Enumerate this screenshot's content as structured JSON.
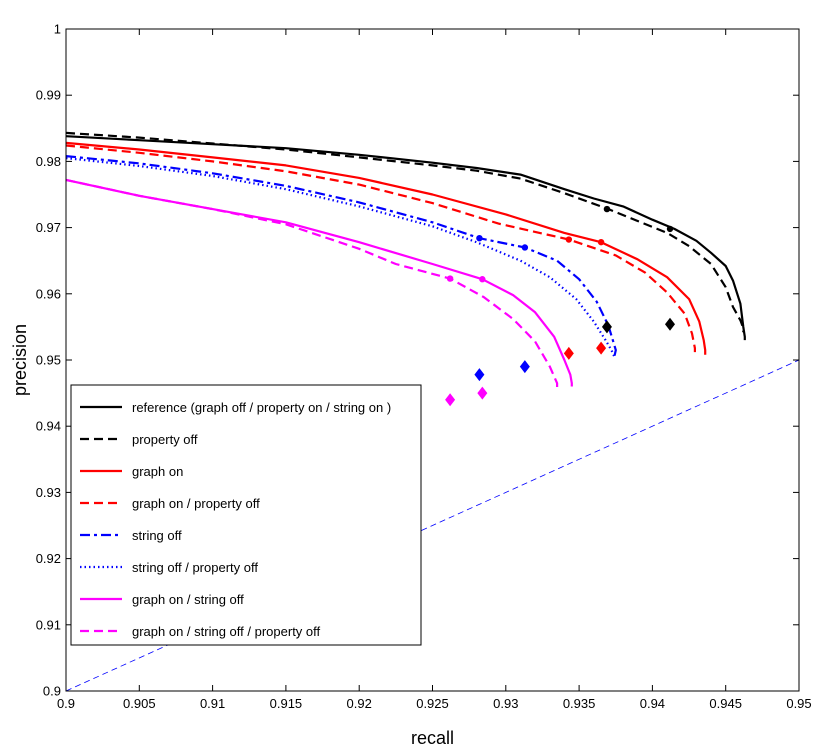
{
  "chart_data": {
    "type": "line",
    "title": "",
    "xlabel": "recall",
    "ylabel": "precision",
    "xlim": [
      0.9,
      0.95
    ],
    "ylim": [
      0.9,
      1.0
    ],
    "xticks": [
      "0.9",
      "0.905",
      "0.91",
      "0.915",
      "0.92",
      "0.925",
      "0.93",
      "0.935",
      "0.94",
      "0.945",
      "0.95"
    ],
    "yticks": [
      "0.9",
      "0.91",
      "0.92",
      "0.93",
      "0.94",
      "0.95",
      "0.96",
      "0.97",
      "0.98",
      "0.99",
      "1"
    ],
    "grid": false,
    "legend_position": "lower-left",
    "series": [
      {
        "name": "reference (graph off / property on / string on )",
        "color": "#000000",
        "dash": "solid",
        "x": [
          0.9,
          0.905,
          0.91,
          0.915,
          0.92,
          0.925,
          0.928,
          0.931,
          0.934,
          0.936,
          0.938,
          0.94,
          0.9415,
          0.943,
          0.944,
          0.945,
          0.9455,
          0.946,
          0.9462,
          0.9463,
          0.9463
        ],
        "y": [
          0.9838,
          0.9832,
          0.9826,
          0.982,
          0.981,
          0.9798,
          0.979,
          0.978,
          0.9758,
          0.9744,
          0.9732,
          0.9712,
          0.9698,
          0.968,
          0.9662,
          0.9642,
          0.962,
          0.9585,
          0.955,
          0.9535,
          0.953
        ]
      },
      {
        "name": "property off",
        "color": "#000000",
        "dash": "dashed",
        "x": [
          0.9,
          0.905,
          0.91,
          0.915,
          0.92,
          0.925,
          0.928,
          0.931,
          0.934,
          0.937,
          0.939,
          0.941,
          0.9425,
          0.944,
          0.945,
          0.9455,
          0.946,
          0.9462,
          0.9462
        ],
        "y": [
          0.9843,
          0.9836,
          0.9827,
          0.9818,
          0.9806,
          0.9794,
          0.9786,
          0.9774,
          0.9752,
          0.9728,
          0.971,
          0.9692,
          0.9672,
          0.9645,
          0.961,
          0.958,
          0.956,
          0.9548,
          0.9542
        ]
      },
      {
        "name": "graph on",
        "color": "#ff0000",
        "dash": "solid",
        "x": [
          0.9,
          0.905,
          0.91,
          0.915,
          0.92,
          0.925,
          0.93,
          0.934,
          0.9365,
          0.939,
          0.941,
          0.9425,
          0.9432,
          0.9435,
          0.9436,
          0.9436
        ],
        "y": [
          0.9828,
          0.9818,
          0.9806,
          0.9794,
          0.9775,
          0.975,
          0.972,
          0.9692,
          0.9678,
          0.9652,
          0.9625,
          0.9592,
          0.9558,
          0.953,
          0.9515,
          0.9508
        ]
      },
      {
        "name": "graph on / property off",
        "color": "#ff0000",
        "dash": "dashed",
        "x": [
          0.9,
          0.905,
          0.91,
          0.915,
          0.92,
          0.925,
          0.9295,
          0.9343,
          0.9375,
          0.9395,
          0.941,
          0.9422,
          0.9427,
          0.9429,
          0.9429
        ],
        "y": [
          0.9824,
          0.9813,
          0.98,
          0.9785,
          0.9765,
          0.9737,
          0.9706,
          0.9682,
          0.9658,
          0.9632,
          0.9602,
          0.957,
          0.954,
          0.9518,
          0.9512
        ]
      },
      {
        "name": "string off",
        "color": "#0000ff",
        "dash": "dashdot",
        "x": [
          0.9,
          0.905,
          0.91,
          0.915,
          0.92,
          0.925,
          0.9282,
          0.9313,
          0.9335,
          0.935,
          0.9362,
          0.937,
          0.9373,
          0.9375,
          0.9374
        ],
        "y": [
          0.9808,
          0.9797,
          0.9782,
          0.9763,
          0.9738,
          0.9708,
          0.9684,
          0.967,
          0.965,
          0.9622,
          0.9588,
          0.9552,
          0.953,
          0.9515,
          0.9505
        ]
      },
      {
        "name": "string off  / property off",
        "color": "#0000ff",
        "dash": "dotted",
        "x": [
          0.9,
          0.905,
          0.91,
          0.915,
          0.92,
          0.925,
          0.928,
          0.931,
          0.933,
          0.9348,
          0.936,
          0.9368,
          0.9372,
          0.9374
        ],
        "y": [
          0.9805,
          0.9793,
          0.9778,
          0.9758,
          0.9732,
          0.9702,
          0.9678,
          0.965,
          0.9625,
          0.9592,
          0.9558,
          0.953,
          0.9515,
          0.9505
        ]
      },
      {
        "name": "graph on / string off",
        "color": "#ff00ff",
        "dash": "solid",
        "x": [
          0.9,
          0.905,
          0.91,
          0.915,
          0.92,
          0.925,
          0.9284,
          0.9305,
          0.932,
          0.9333,
          0.934,
          0.9344,
          0.9345,
          0.9345
        ],
        "y": [
          0.9772,
          0.9748,
          0.9728,
          0.9708,
          0.9678,
          0.9645,
          0.9622,
          0.9598,
          0.9572,
          0.9535,
          0.95,
          0.9478,
          0.9465,
          0.946
        ]
      },
      {
        "name": "graph on / string off / property off",
        "color": "#ff00ff",
        "dash": "dashed",
        "x": [
          0.9,
          0.905,
          0.91,
          0.915,
          0.92,
          0.9225,
          0.9262,
          0.9285,
          0.9305,
          0.932,
          0.933,
          0.9335,
          0.9335
        ],
        "y": [
          0.9772,
          0.9748,
          0.9728,
          0.9705,
          0.9668,
          0.9645,
          0.9623,
          0.9595,
          0.9562,
          0.9528,
          0.949,
          0.9465,
          0.9458
        ]
      }
    ],
    "circle_markers": [
      {
        "color": "#000000",
        "x": 0.9369,
        "y": 0.9728
      },
      {
        "color": "#000000",
        "x": 0.9412,
        "y": 0.9698
      },
      {
        "color": "#ff0000",
        "x": 0.9343,
        "y": 0.9682
      },
      {
        "color": "#ff0000",
        "x": 0.9365,
        "y": 0.9678
      },
      {
        "color": "#0000ff",
        "x": 0.9282,
        "y": 0.9684
      },
      {
        "color": "#0000ff",
        "x": 0.9313,
        "y": 0.967
      },
      {
        "color": "#ff00ff",
        "x": 0.9262,
        "y": 0.9623
      },
      {
        "color": "#ff00ff",
        "x": 0.9284,
        "y": 0.9622
      }
    ],
    "diamond_markers": [
      {
        "color": "#000000",
        "x": 0.9369,
        "y": 0.955
      },
      {
        "color": "#000000",
        "x": 0.9412,
        "y": 0.9554
      },
      {
        "color": "#ff0000",
        "x": 0.9343,
        "y": 0.951
      },
      {
        "color": "#ff0000",
        "x": 0.9365,
        "y": 0.9518
      },
      {
        "color": "#0000ff",
        "x": 0.9282,
        "y": 0.9478
      },
      {
        "color": "#0000ff",
        "x": 0.9313,
        "y": 0.949
      },
      {
        "color": "#ff00ff",
        "x": 0.9262,
        "y": 0.944
      },
      {
        "color": "#ff00ff",
        "x": 0.9284,
        "y": 0.945
      }
    ],
    "reference_line": {
      "color": "#0000ff",
      "dash": "dashed",
      "x": [
        0.9,
        0.95
      ],
      "y": [
        0.9,
        0.95
      ]
    }
  }
}
